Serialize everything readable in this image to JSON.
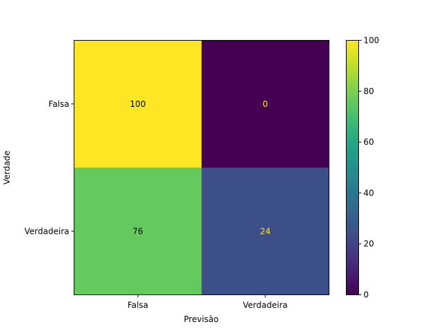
{
  "chart_data": {
    "type": "heatmap",
    "title": "",
    "xlabel": "Previsão",
    "ylabel": "Verdade",
    "x_categories": [
      "Falsa",
      "Verdadeira"
    ],
    "y_categories": [
      "Falsa",
      "Verdadeira"
    ],
    "values": [
      [
        100,
        0
      ],
      [
        76,
        24
      ]
    ],
    "colormap": "viridis",
    "colorbar": {
      "range": [
        0,
        100
      ],
      "ticks": [
        "0",
        "20",
        "40",
        "60",
        "80",
        "100"
      ]
    },
    "text_colors": {
      "on_dark": "#fde725",
      "on_light": "#000000"
    }
  }
}
